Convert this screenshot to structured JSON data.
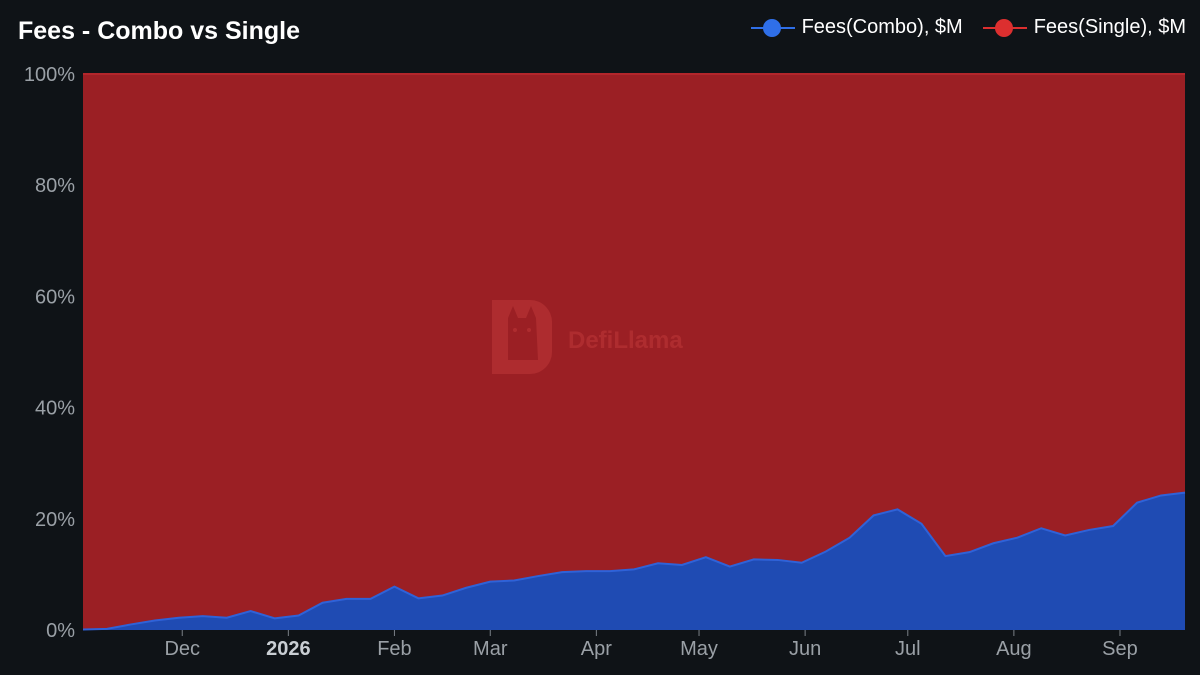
{
  "header": {
    "title": "Fees - Combo vs Single"
  },
  "legend": [
    {
      "label": "Fees(Combo), $M",
      "color": "#2f6fe8"
    },
    {
      "label": "Fees(Single), $M",
      "color": "#dc2f2f"
    }
  ],
  "watermark": "DefiLlama",
  "colors": {
    "background": "#0f1317",
    "combo_fill": "#1f4bb3",
    "combo_line": "#2f62d8",
    "single_fill": "#9b1f24",
    "single_line": "#b3262b",
    "tick_text": "#9aa0a6"
  },
  "chart_data": {
    "type": "area",
    "stacking": "percent",
    "title": "Fees - Combo vs Single",
    "ylim": [
      0,
      100
    ],
    "y_ticks": [
      "0%",
      "20%",
      "40%",
      "60%",
      "80%",
      "100%"
    ],
    "x_range": [
      "2025-11-02",
      "2026-09-20"
    ],
    "x_ticks": [
      {
        "label": "Dec",
        "date": "2025-12-01",
        "bold": false
      },
      {
        "label": "2026",
        "date": "2026-01-01",
        "bold": true
      },
      {
        "label": "Feb",
        "date": "2026-02-01",
        "bold": false
      },
      {
        "label": "Mar",
        "date": "2026-03-01",
        "bold": false
      },
      {
        "label": "Apr",
        "date": "2026-04-01",
        "bold": false
      },
      {
        "label": "May",
        "date": "2026-05-01",
        "bold": false
      },
      {
        "label": "Jun",
        "date": "2026-06-01",
        "bold": false
      },
      {
        "label": "Jul",
        "date": "2026-07-01",
        "bold": false
      },
      {
        "label": "Aug",
        "date": "2026-08-01",
        "bold": false
      },
      {
        "label": "Sep",
        "date": "2026-09-01",
        "bold": false
      }
    ],
    "legend_position": "top-right",
    "grid": false,
    "x": [
      "2025-11-02",
      "2025-11-09",
      "2025-11-16",
      "2025-11-23",
      "2025-11-30",
      "2025-12-07",
      "2025-12-14",
      "2025-12-21",
      "2025-12-28",
      "2026-01-04",
      "2026-01-11",
      "2026-01-18",
      "2026-01-25",
      "2026-02-01",
      "2026-02-08",
      "2026-02-15",
      "2026-02-22",
      "2026-03-01",
      "2026-03-08",
      "2026-03-15",
      "2026-03-22",
      "2026-03-29",
      "2026-04-05",
      "2026-04-12",
      "2026-04-19",
      "2026-04-26",
      "2026-05-03",
      "2026-05-10",
      "2026-05-17",
      "2026-05-24",
      "2026-05-31",
      "2026-06-07",
      "2026-06-14",
      "2026-06-21",
      "2026-06-28",
      "2026-07-05",
      "2026-07-12",
      "2026-07-19",
      "2026-07-26",
      "2026-08-02",
      "2026-08-09",
      "2026-08-16",
      "2026-08-23",
      "2026-08-30",
      "2026-09-06",
      "2026-09-13",
      "2026-09-20"
    ],
    "series": [
      {
        "name": "Fees(Combo), $M",
        "color": "#2f62d8",
        "values": [
          0.1,
          0.2,
          1.0,
          1.7,
          2.2,
          2.5,
          2.2,
          3.4,
          2.1,
          2.6,
          4.9,
          5.6,
          5.6,
          7.8,
          5.7,
          6.2,
          7.6,
          8.7,
          8.9,
          9.7,
          10.4,
          10.6,
          10.6,
          10.9,
          12.0,
          11.7,
          13.1,
          11.4,
          12.7,
          12.6,
          12.1,
          14.1,
          16.6,
          20.6,
          21.7,
          19.1,
          13.3,
          14.0,
          15.6,
          16.6,
          18.3,
          17.0,
          18.0,
          18.7,
          22.9,
          24.2,
          24.7
        ]
      },
      {
        "name": "Fees(Single), $M",
        "color": "#b3262b",
        "values": [
          99.9,
          99.8,
          99.0,
          98.3,
          97.8,
          97.5,
          97.8,
          96.6,
          97.9,
          97.4,
          95.1,
          94.4,
          94.4,
          92.2,
          94.3,
          93.8,
          92.4,
          91.3,
          91.1,
          90.3,
          89.6,
          89.4,
          89.4,
          89.1,
          88.0,
          88.3,
          86.9,
          88.6,
          87.3,
          87.4,
          87.9,
          85.9,
          83.4,
          79.4,
          78.3,
          80.9,
          86.7,
          86.0,
          84.4,
          83.4,
          81.7,
          83.0,
          82.0,
          81.3,
          77.1,
          75.8,
          75.3
        ]
      }
    ]
  }
}
